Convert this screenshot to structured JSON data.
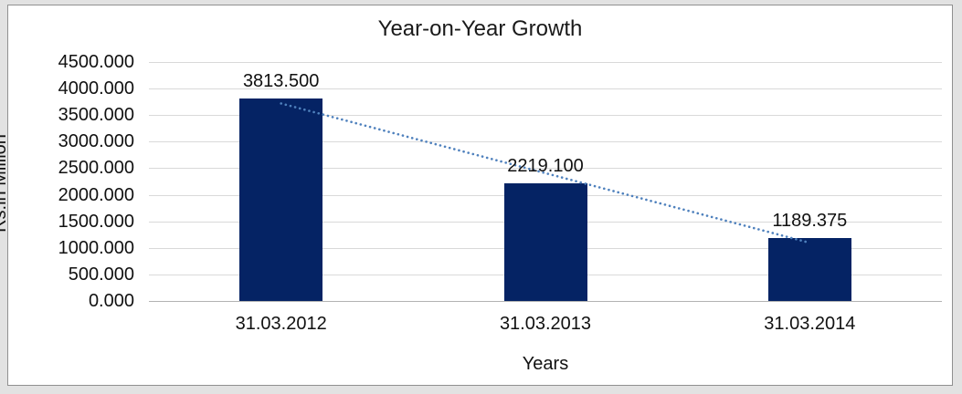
{
  "window": {
    "background_color": "#e2e2e2",
    "frame_border_color": "#909090",
    "frame_background": "#ffffff"
  },
  "chart_data": {
    "type": "bar",
    "title": "Year-on-Year Growth",
    "xlabel": "Years",
    "ylabel": "Rs.in Million",
    "categories": [
      "31.03.2012",
      "31.03.2013",
      "31.03.2014"
    ],
    "values": [
      3813.5,
      2219.1,
      1189.375
    ],
    "data_labels": [
      "3813.500",
      "2219.100",
      "1189.375"
    ],
    "y_ticks": [
      "4500.000",
      "4000.000",
      "3500.000",
      "3000.000",
      "2500.000",
      "2000.000",
      "1500.000",
      "1000.000",
      "500.000",
      "0.000"
    ],
    "ylim": [
      0,
      4500
    ],
    "y_tick_step": 500,
    "grid": true,
    "legend": "none",
    "bar_color": "#052364",
    "gridline_color": "#d9d9d9",
    "axis_line_color": "#b3b3b3",
    "text_color": "#111111",
    "trendline": {
      "type": "linear",
      "style": "dotted",
      "color": "#4f81bd"
    }
  }
}
